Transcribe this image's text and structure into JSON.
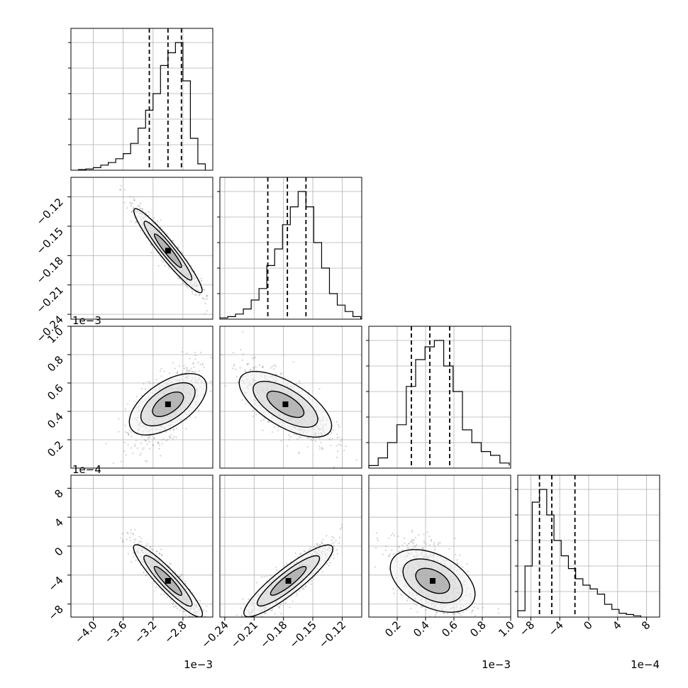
{
  "chart_data": {
    "type": "corner",
    "grid": true,
    "colors": {
      "line": "#000000",
      "grid": "#b0b0b0",
      "background": "#ffffff",
      "scatter": "#808080"
    },
    "parameters": [
      {
        "index": 0,
        "range": [
          -4.3,
          -2.4
        ],
        "ticks": [
          "−4.0",
          "−3.6",
          "−3.2",
          "−2.8"
        ],
        "tick_values": [
          -4.0,
          -3.6,
          -3.2,
          -2.8
        ],
        "scale_label": "1e−3",
        "quantiles": [
          -3.25,
          -3.0,
          -2.82
        ],
        "histogram_edges": [
          -4.2,
          -4.1,
          -4.0,
          -3.9,
          -3.8,
          -3.7,
          -3.6,
          -3.5,
          -3.4,
          -3.3,
          -3.2,
          -3.1,
          -3.0,
          -2.9,
          -2.8,
          -2.7,
          -2.6,
          -2.5
        ],
        "histogram_counts": [
          0.005,
          0.01,
          0.02,
          0.04,
          0.06,
          0.09,
          0.13,
          0.21,
          0.33,
          0.47,
          0.6,
          0.82,
          0.92,
          1.0,
          0.7,
          0.25,
          0.05
        ]
      },
      {
        "index": 1,
        "range": [
          -0.245,
          -0.1
        ],
        "ticks": [
          "−0.24",
          "−0.21",
          "−0.18",
          "−0.15",
          "−0.12"
        ],
        "tick_values": [
          -0.24,
          -0.21,
          -0.18,
          -0.15,
          -0.12
        ],
        "scale_label": "",
        "quantiles": [
          -0.196,
          -0.176,
          -0.157
        ],
        "histogram_edges": [
          -0.245,
          -0.237,
          -0.229,
          -0.221,
          -0.213,
          -0.205,
          -0.197,
          -0.189,
          -0.181,
          -0.173,
          -0.165,
          -0.157,
          -0.149,
          -0.141,
          -0.133,
          -0.125,
          -0.117,
          -0.109,
          -0.101
        ],
        "histogram_counts": [
          0.01,
          0.02,
          0.04,
          0.08,
          0.15,
          0.24,
          0.42,
          0.55,
          0.74,
          0.88,
          1.0,
          0.88,
          0.6,
          0.4,
          0.2,
          0.11,
          0.06,
          0.02
        ]
      },
      {
        "index": 2,
        "range": [
          0.0,
          1.0
        ],
        "ticks": [
          "0.2",
          "0.4",
          "0.6",
          "0.8",
          "1.0"
        ],
        "tick_values": [
          0.2,
          0.4,
          0.6,
          0.8,
          1.0
        ],
        "scale_label": "1e−3",
        "quantiles": [
          0.3,
          0.43,
          0.57
        ],
        "histogram_edges": [
          0.0,
          0.066,
          0.132,
          0.198,
          0.264,
          0.33,
          0.396,
          0.462,
          0.528,
          0.594,
          0.66,
          0.726,
          0.792,
          0.858,
          0.924,
          0.99
        ],
        "histogram_counts": [
          0.02,
          0.08,
          0.2,
          0.34,
          0.64,
          0.85,
          0.95,
          1.0,
          0.8,
          0.6,
          0.3,
          0.2,
          0.13,
          0.1,
          0.04,
          0.02
        ]
      },
      {
        "index": 3,
        "range": [
          -9.8,
          9.8
        ],
        "ticks": [
          "−8",
          "−4",
          "0",
          "4",
          "8"
        ],
        "tick_values": [
          -8,
          -4,
          0,
          4,
          8
        ],
        "scale_label": "1e−4",
        "quantiles": [
          -6.8,
          -5.1,
          -1.9
        ],
        "histogram_edges": [
          -9.8,
          -8.8,
          -7.8,
          -6.8,
          -5.8,
          -4.8,
          -3.8,
          -2.8,
          -1.8,
          -0.8,
          0.2,
          1.2,
          2.2,
          3.2,
          4.2,
          5.2,
          6.2,
          7.2
        ],
        "histogram_counts": [
          0.05,
          0.4,
          0.9,
          1.0,
          0.8,
          0.6,
          0.48,
          0.38,
          0.3,
          0.25,
          0.22,
          0.18,
          0.1,
          0.06,
          0.03,
          0.02,
          0.01
        ]
      }
    ],
    "pairs": [
      {
        "row": 1,
        "col": 0,
        "center": [
          -3.0,
          -0.175
        ],
        "correlation": -0.95,
        "spread": [
          0.22,
          0.022
        ]
      },
      {
        "row": 2,
        "col": 0,
        "center": [
          -3.0,
          0.45
        ],
        "correlation": 0.6,
        "spread": [
          0.22,
          0.13
        ]
      },
      {
        "row": 2,
        "col": 1,
        "center": [
          -0.178,
          0.45
        ],
        "correlation": -0.7,
        "spread": [
          0.022,
          0.13
        ]
      },
      {
        "row": 3,
        "col": 0,
        "center": [
          -3.0,
          -4.8
        ],
        "correlation": -0.92,
        "spread": [
          0.22,
          2.6
        ]
      },
      {
        "row": 3,
        "col": 1,
        "center": [
          -0.175,
          -4.8
        ],
        "correlation": 0.9,
        "spread": [
          0.022,
          2.6
        ]
      },
      {
        "row": 3,
        "col": 2,
        "center": [
          0.45,
          -4.8
        ],
        "correlation": -0.5,
        "spread": [
          0.13,
          2.6
        ]
      }
    ]
  }
}
